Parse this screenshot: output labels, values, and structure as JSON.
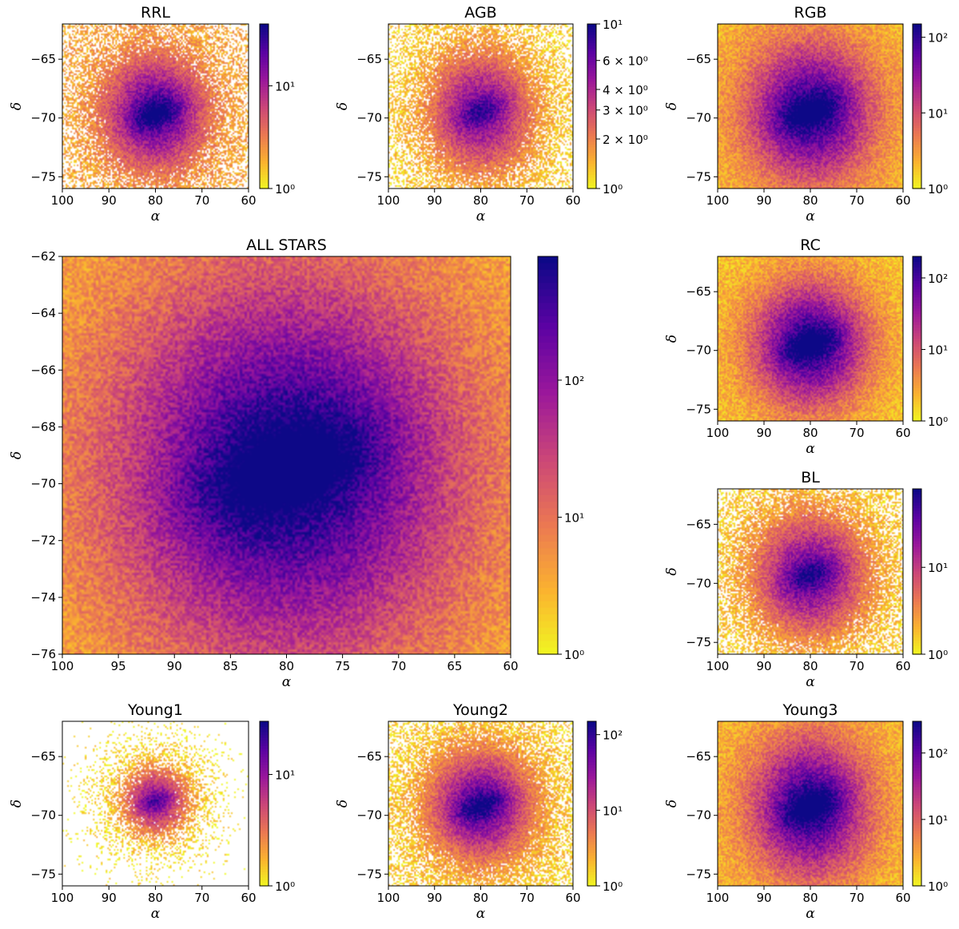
{
  "figure": {
    "colormap": "plasma_r",
    "colors": [
      "#0d0887",
      "#5b02a3",
      "#9a179b",
      "#cb4678",
      "#eb7852",
      "#fbb32f",
      "#f0f921"
    ],
    "x_label": "α",
    "y_label": "δ"
  },
  "chart_data": [
    {
      "id": "rrl",
      "type": "heatmap",
      "title": "RRL",
      "xlim": [
        100,
        60
      ],
      "ylim": [
        -76,
        -62
      ],
      "xticks": [
        "100",
        "90",
        "80",
        "70",
        "60"
      ],
      "yticks": [
        "-65",
        "-70",
        "-75"
      ],
      "colorbar": {
        "scale": "log",
        "range": [
          1,
          40
        ],
        "ticks": [
          [
            "10⁰",
            1
          ],
          [
            "10¹",
            10
          ]
        ]
      },
      "density": {
        "center": [
          80,
          -69.6
        ],
        "spread": [
          11,
          4.8
        ],
        "peak": 0.9,
        "floor": 0.2,
        "sparse": 0.82
      }
    },
    {
      "id": "agb",
      "type": "heatmap",
      "title": "AGB",
      "xlim": [
        100,
        60
      ],
      "ylim": [
        -76,
        -62
      ],
      "xticks": [
        "100",
        "90",
        "80",
        "70",
        "60"
      ],
      "yticks": [
        "-65",
        "-70",
        "-75"
      ],
      "colorbar": {
        "scale": "log",
        "range": [
          1,
          10
        ],
        "ticks": [
          [
            "10¹",
            10
          ],
          [
            "6 × 10⁰",
            6
          ],
          [
            "4 × 10⁰",
            4
          ],
          [
            "3 × 10⁰",
            3
          ],
          [
            "2 × 10⁰",
            2
          ],
          [
            "10⁰",
            1
          ]
        ]
      },
      "density": {
        "center": [
          80,
          -69.5
        ],
        "spread": [
          12,
          5.5
        ],
        "peak": 0.75,
        "floor": 0.1,
        "sparse": 0.7
      }
    },
    {
      "id": "rgb",
      "type": "heatmap",
      "title": "RGB",
      "xlim": [
        100,
        60
      ],
      "ylim": [
        -76,
        -62
      ],
      "xticks": [
        "100",
        "90",
        "80",
        "70",
        "60"
      ],
      "yticks": [
        "-65",
        "-70",
        "-75"
      ],
      "colorbar": {
        "scale": "log",
        "range": [
          1,
          150
        ],
        "ticks": [
          [
            "10²",
            100
          ],
          [
            "10¹",
            10
          ],
          [
            "10⁰",
            1
          ]
        ]
      },
      "density": {
        "center": [
          80,
          -69.5
        ],
        "spread": [
          15,
          6.5
        ],
        "peak": 0.95,
        "floor": 0.15,
        "sparse": 0.98
      }
    },
    {
      "id": "all",
      "type": "heatmap",
      "title": "ALL STARS",
      "xlim": [
        100,
        60
      ],
      "ylim": [
        -76,
        -62
      ],
      "xticks": [
        "100",
        "95",
        "90",
        "85",
        "80",
        "75",
        "70",
        "65",
        "60"
      ],
      "yticks": [
        "-62",
        "-64",
        "-66",
        "-68",
        "-70",
        "-72",
        "-74",
        "-76"
      ],
      "colorbar": {
        "scale": "log",
        "range": [
          1,
          800
        ],
        "ticks": [
          [
            "10²",
            100
          ],
          [
            "10¹",
            10
          ],
          [
            "10⁰",
            1
          ]
        ]
      },
      "density": {
        "center": [
          80,
          -69.5
        ],
        "spread": [
          17,
          7.5
        ],
        "peak": 1.0,
        "floor": 0.18,
        "sparse": 0.995
      }
    },
    {
      "id": "rc",
      "type": "heatmap",
      "title": "RC",
      "xlim": [
        100,
        60
      ],
      "ylim": [
        -76,
        -62
      ],
      "xticks": [
        "100",
        "90",
        "80",
        "70",
        "60"
      ],
      "yticks": [
        "-65",
        "-70",
        "-75"
      ],
      "colorbar": {
        "scale": "log",
        "range": [
          1,
          200
        ],
        "ticks": [
          [
            "10²",
            100
          ],
          [
            "10¹",
            10
          ],
          [
            "10⁰",
            1
          ]
        ]
      },
      "density": {
        "center": [
          80,
          -69.5
        ],
        "spread": [
          14,
          6
        ],
        "peak": 0.95,
        "floor": 0.12,
        "sparse": 0.95
      }
    },
    {
      "id": "bl",
      "type": "heatmap",
      "title": "BL",
      "xlim": [
        100,
        60
      ],
      "ylim": [
        -76,
        -62
      ],
      "xticks": [
        "100",
        "90",
        "80",
        "70",
        "60"
      ],
      "yticks": [
        "-65",
        "-70",
        "-75"
      ],
      "colorbar": {
        "scale": "log",
        "range": [
          1,
          80
        ],
        "ticks": [
          [
            "10¹",
            10
          ],
          [
            "10⁰",
            1
          ]
        ]
      },
      "density": {
        "center": [
          80,
          -69.3
        ],
        "spread": [
          13,
          5.5
        ],
        "peak": 0.8,
        "floor": 0.1,
        "sparse": 0.75
      }
    },
    {
      "id": "young1",
      "type": "heatmap",
      "title": "Young1",
      "xlim": [
        100,
        60
      ],
      "ylim": [
        -76,
        -62
      ],
      "xticks": [
        "100",
        "90",
        "80",
        "70",
        "60"
      ],
      "yticks": [
        "-65",
        "-70",
        "-75"
      ],
      "colorbar": {
        "scale": "log",
        "range": [
          1,
          30
        ],
        "ticks": [
          [
            "10¹",
            10
          ],
          [
            "10⁰",
            1
          ]
        ]
      },
      "density": {
        "center": [
          80,
          -68.8
        ],
        "spread": [
          8,
          3.2
        ],
        "peak": 0.7,
        "floor": 0.05,
        "sparse": 0.5
      }
    },
    {
      "id": "young2",
      "type": "heatmap",
      "title": "Young2",
      "xlim": [
        100,
        60
      ],
      "ylim": [
        -76,
        -62
      ],
      "xticks": [
        "100",
        "90",
        "80",
        "70",
        "60"
      ],
      "yticks": [
        "-65",
        "-70",
        "-75"
      ],
      "colorbar": {
        "scale": "log",
        "range": [
          1,
          150
        ],
        "ticks": [
          [
            "10²",
            100
          ],
          [
            "10¹",
            10
          ],
          [
            "10⁰",
            1
          ]
        ]
      },
      "density": {
        "center": [
          80,
          -69.2
        ],
        "spread": [
          12,
          5
        ],
        "peak": 0.85,
        "floor": 0.1,
        "sparse": 0.8
      }
    },
    {
      "id": "young3",
      "type": "heatmap",
      "title": "Young3",
      "xlim": [
        100,
        60
      ],
      "ylim": [
        -76,
        -62
      ],
      "xticks": [
        "100",
        "90",
        "80",
        "70",
        "60"
      ],
      "yticks": [
        "-65",
        "-70",
        "-75"
      ],
      "colorbar": {
        "scale": "log",
        "range": [
          1,
          300
        ],
        "ticks": [
          [
            "10²",
            100
          ],
          [
            "10¹",
            10
          ],
          [
            "10⁰",
            1
          ]
        ]
      },
      "density": {
        "center": [
          80,
          -69.3
        ],
        "spread": [
          14,
          6.5
        ],
        "peak": 0.95,
        "floor": 0.15,
        "sparse": 0.97
      }
    }
  ]
}
